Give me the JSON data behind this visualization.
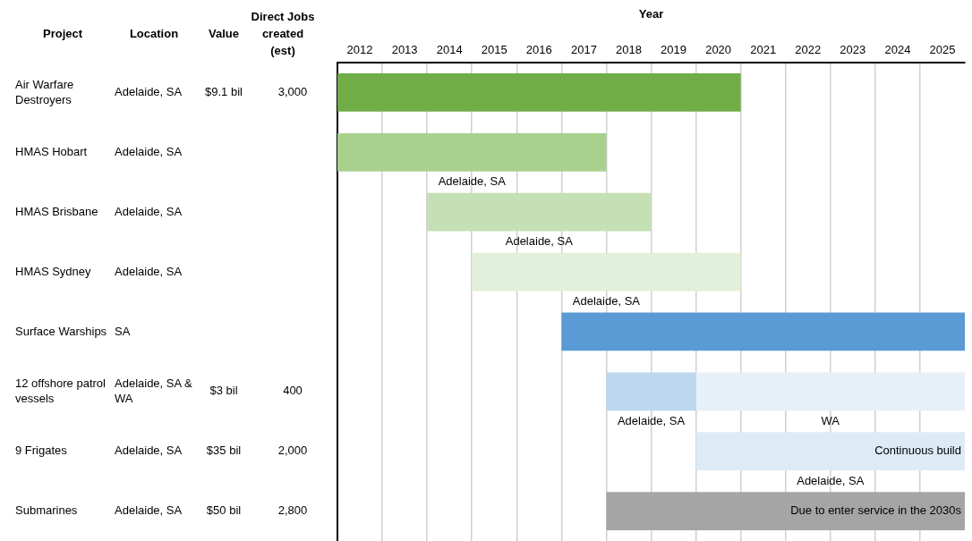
{
  "chart_data": {
    "type": "bar",
    "orientation": "horizontal",
    "xlabel": "Year",
    "categories": [
      null,
      null,
      null,
      null,
      null,
      null,
      null,
      null
    ],
    "series": [
      {
        "values": [
          9,
          6,
          5,
          6,
          9,
          2,
          6,
          8
        ],
        "base": [
          2012,
          2012,
          2014,
          2015,
          2017,
          2018,
          2020,
          2018
        ],
        "colors": [
          "#70ad47",
          "#a9d18e",
          "#c5e0b4",
          "#e2efda",
          "#5b9bd5",
          "#bdd7ee",
          "#ddebf7",
          "#a5a5a5"
        ],
        "value_labels": [
          null,
          "Adelaide, SA",
          "Adelaide, SA",
          "Adelaide, SA",
          null,
          "Adelaide, SA",
          "Adelaide, SA",
          null
        ]
      },
      {
        "values": [
          null,
          null,
          null,
          null,
          null,
          6,
          null,
          null
        ],
        "base": [
          null,
          null,
          null,
          null,
          null,
          2020,
          null,
          null
        ],
        "color": "#e6f0f9",
        "value_labels": [
          null,
          null,
          null,
          null,
          null,
          "WA",
          null,
          null
        ]
      }
    ],
    "xlim": [
      2012,
      2026
    ],
    "xticks": [
      {
        "value": 2012.5,
        "label": "2012"
      },
      {
        "value": 2013,
        "label": null
      },
      {
        "value": 2013.5,
        "label": "2013"
      },
      {
        "value": 2014,
        "label": null
      },
      {
        "value": 2014.5,
        "label": "2014"
      },
      {
        "value": 2015,
        "label": null
      },
      {
        "value": 2015.5,
        "label": "2015"
      },
      {
        "value": 2016,
        "label": null
      },
      {
        "value": 2016.5,
        "label": "2016"
      },
      {
        "value": 2017,
        "label": null
      },
      {
        "value": 2017.5,
        "label": "2017"
      },
      {
        "value": 2018,
        "label": null
      },
      {
        "value": 2018.5,
        "label": "2018"
      },
      {
        "value": 2019,
        "label": null
      },
      {
        "value": 2019.5,
        "label": "2019"
      },
      {
        "value": 2020,
        "label": null
      },
      {
        "value": 2020.5,
        "label": "2020"
      },
      {
        "value": 2021,
        "label": null
      },
      {
        "value": 2021.5,
        "label": "2021"
      },
      {
        "value": 2022,
        "label": null
      },
      {
        "value": 2022.5,
        "label": "2022"
      },
      {
        "value": 2023,
        "label": null
      },
      {
        "value": 2023.5,
        "label": "2023"
      },
      {
        "value": 2024,
        "label": null
      },
      {
        "value": 2024.5,
        "label": "2024"
      },
      {
        "value": 2025,
        "label": null
      },
      {
        "value": 2025.5,
        "label": "2025"
      }
    ],
    "grid": "x",
    "legend": false,
    "annotations": [
      "Project",
      "Location",
      "Value",
      "Direct Jobs created (est)",
      "Air Warfare Destroyers",
      "Adelaide, SA",
      "$9.1 bil",
      "3,000",
      "HMAS Hobart",
      "Adelaide, SA",
      null,
      null,
      "HMAS Brisbane",
      "Adelaide, SA",
      null,
      null,
      "HMAS Sydney",
      "Adelaide, SA",
      null,
      null,
      "Surface Warships",
      "SA",
      null,
      null,
      "12 offshore patrol vessels",
      "Adelaide, SA & WA",
      "$3 bil",
      "400",
      "9 Frigates",
      "Adelaide, SA",
      "$35 bil",
      "2,000",
      "Submarines",
      "Adelaide, SA",
      "$50 bil",
      "2,800",
      "Continuous build",
      "Due to enter service in the 2030s"
    ]
  }
}
